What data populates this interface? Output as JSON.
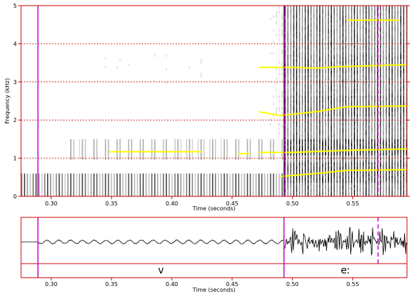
{
  "chart_data": [
    {
      "type": "spectrogram",
      "ylabel": "Frequency (kHz)",
      "xlabel": "Time (seconds)",
      "xlim": [
        0.275,
        0.595
      ],
      "ylim": [
        0,
        5
      ],
      "x_ticks": [
        "0.30",
        "0.35",
        "0.40",
        "0.45",
        "0.50",
        "0.55"
      ],
      "x_tick_values": [
        0.3,
        0.35,
        0.4,
        0.45,
        0.5,
        0.55
      ],
      "y_ticks": [
        "0",
        "1",
        "2",
        "3",
        "4",
        "5"
      ],
      "y_tick_values": [
        0,
        1,
        2,
        3,
        4,
        5
      ],
      "grid": "dotted horizontal lines at each kHz",
      "segment_boundaries_s": [
        0.289,
        0.493
      ],
      "cursor_s": 0.571,
      "formant_tracks_khz": [
        {
          "points": [
            [
              0.348,
              1.17
            ],
            [
              0.425,
              1.17
            ]
          ]
        },
        {
          "points": [
            [
              0.455,
              1.12
            ],
            [
              0.465,
              1.12
            ]
          ]
        },
        {
          "points": [
            [
              0.472,
              1.15
            ],
            [
              0.5,
              1.15
            ],
            [
              0.54,
              1.2
            ],
            [
              0.595,
              1.24
            ]
          ]
        },
        {
          "points": [
            [
              0.49,
              0.52
            ],
            [
              0.52,
              0.6
            ],
            [
              0.545,
              0.68
            ],
            [
              0.595,
              0.7
            ]
          ]
        },
        {
          "points": [
            [
              0.472,
              2.22
            ],
            [
              0.49,
              2.12
            ],
            [
              0.52,
              2.22
            ],
            [
              0.545,
              2.35
            ],
            [
              0.595,
              2.37
            ]
          ]
        },
        {
          "points": [
            [
              0.472,
              3.38
            ],
            [
              0.5,
              3.38
            ],
            [
              0.52,
              3.36
            ],
            [
              0.54,
              3.4
            ],
            [
              0.595,
              3.45
            ]
          ]
        },
        {
          "points": [
            [
              0.545,
              4.62
            ],
            [
              0.588,
              4.62
            ]
          ]
        }
      ]
    },
    {
      "type": "waveform",
      "xlabel": "Time (seconds)",
      "xlim": [
        0.275,
        0.595
      ],
      "x_ticks": [
        "0.30",
        "0.35",
        "0.40",
        "0.45",
        "0.50",
        "0.55"
      ],
      "x_tick_values": [
        0.3,
        0.35,
        0.4,
        0.45,
        0.5,
        0.55
      ],
      "segments": [
        {
          "label": "v",
          "start_s": 0.289,
          "end_s": 0.493
        },
        {
          "label": "eː",
          "start_s": 0.493,
          "end_s": 0.595
        }
      ]
    }
  ],
  "colors": {
    "frame": "#cc0000",
    "boundary": "#cc00cc",
    "formant": "#ffff00",
    "grid": "#cc0000",
    "ink": "#000000"
  }
}
